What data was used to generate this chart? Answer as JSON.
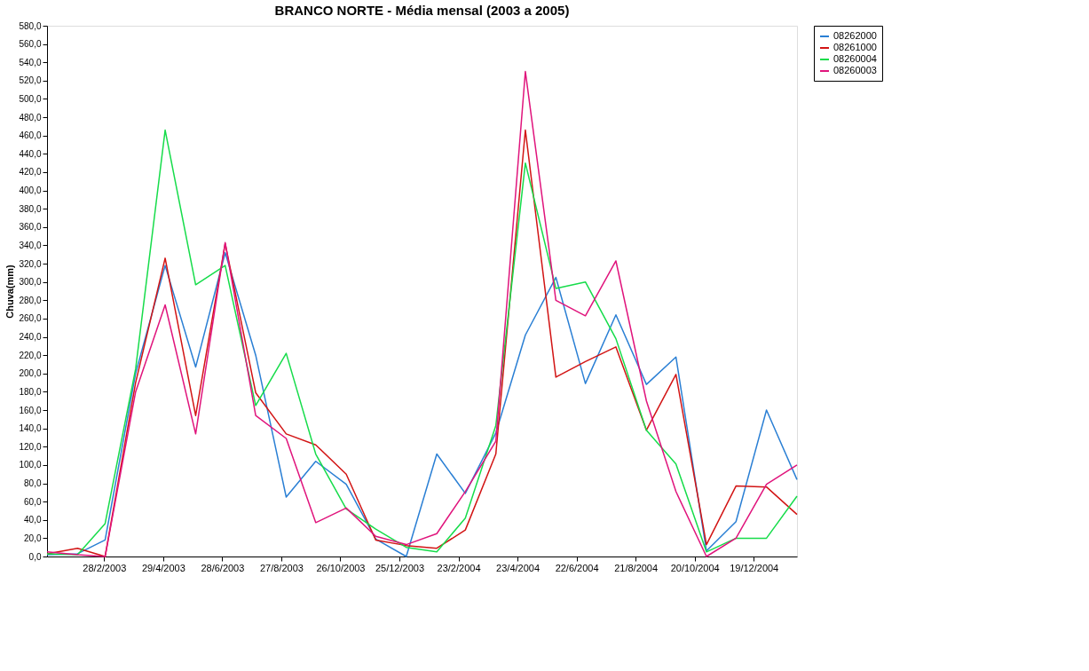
{
  "chart_data": {
    "type": "line",
    "title": "BRANCO NORTE - Média mensal (2003 a 2005)",
    "ylabel": "Chuva(mm)",
    "x": [
      "2003-01-01",
      "2003-02-01",
      "2003-03-01",
      "2003-04-01",
      "2003-05-01",
      "2003-06-01",
      "2003-07-01",
      "2003-08-01",
      "2003-09-01",
      "2003-10-01",
      "2003-11-01",
      "2003-12-01",
      "2004-01-01",
      "2004-02-01",
      "2004-03-01",
      "2004-04-01",
      "2004-05-01",
      "2004-06-01",
      "2004-07-01",
      "2004-08-01",
      "2004-09-01",
      "2004-10-01",
      "2004-11-01",
      "2004-12-01",
      "2005-01-01",
      "2005-02-01"
    ],
    "series": [
      {
        "name": "08262000",
        "color": "#2a7fd4",
        "values": [
          2,
          3,
          18,
          200,
          318,
          207,
          332,
          220,
          65,
          104,
          79,
          19,
          0,
          112,
          69,
          135,
          242,
          305,
          189,
          264,
          188,
          218,
          6,
          38,
          160,
          84
        ]
      },
      {
        "name": "08261000",
        "color": "#d21414",
        "values": [
          3,
          9,
          0,
          190,
          326,
          154,
          342,
          179,
          134,
          122,
          90,
          18,
          12,
          9,
          29,
          112,
          466,
          196,
          213,
          229,
          138,
          199,
          13,
          77,
          76,
          46
        ]
      },
      {
        "name": "08260004",
        "color": "#16dc4a",
        "values": [
          3,
          2,
          36,
          205,
          466,
          297,
          318,
          165,
          222,
          112,
          52,
          30,
          10,
          5,
          42,
          143,
          430,
          293,
          300,
          238,
          138,
          101,
          5,
          20,
          20,
          66
        ]
      },
      {
        "name": "08260003",
        "color": "#e0147c",
        "values": [
          5,
          2,
          0,
          180,
          275,
          134,
          343,
          154,
          129,
          37,
          53,
          22,
          13,
          25,
          71,
          126,
          530,
          280,
          263,
          323,
          170,
          71,
          0,
          20,
          79,
          100
        ]
      }
    ],
    "xlim": [
      "2003-01-01",
      "2005-02-01"
    ],
    "xticks": [
      {
        "value": "2003-02-28",
        "label": "28/2/2003"
      },
      {
        "value": "2003-04-29",
        "label": "29/4/2003"
      },
      {
        "value": "2003-06-28",
        "label": "28/6/2003"
      },
      {
        "value": "2003-08-27",
        "label": "27/8/2003"
      },
      {
        "value": "2003-10-26",
        "label": "26/10/2003"
      },
      {
        "value": "2003-12-25",
        "label": "25/12/2003"
      },
      {
        "value": "2004-02-23",
        "label": "23/2/2004"
      },
      {
        "value": "2004-04-23",
        "label": "23/4/2004"
      },
      {
        "value": "2004-06-22",
        "label": "22/6/2004"
      },
      {
        "value": "2004-08-21",
        "label": "21/8/2004"
      },
      {
        "value": "2004-10-20",
        "label": "20/10/2004"
      },
      {
        "value": "2004-12-19",
        "label": "19/12/2004"
      }
    ],
    "ylim": [
      0,
      580
    ],
    "yticks": [
      {
        "value": 0,
        "label": "0,0"
      },
      {
        "value": 20,
        "label": "20,0"
      },
      {
        "value": 40,
        "label": "40,0"
      },
      {
        "value": 60,
        "label": "60,0"
      },
      {
        "value": 80,
        "label": "80,0"
      },
      {
        "value": 100,
        "label": "100,0"
      },
      {
        "value": 120,
        "label": "120,0"
      },
      {
        "value": 140,
        "label": "140,0"
      },
      {
        "value": 160,
        "label": "160,0"
      },
      {
        "value": 180,
        "label": "180,0"
      },
      {
        "value": 200,
        "label": "200,0"
      },
      {
        "value": 220,
        "label": "220,0"
      },
      {
        "value": 240,
        "label": "240,0"
      },
      {
        "value": 260,
        "label": "260,0"
      },
      {
        "value": 280,
        "label": "280,0"
      },
      {
        "value": 300,
        "label": "300,0"
      },
      {
        "value": 320,
        "label": "320,0"
      },
      {
        "value": 340,
        "label": "340,0"
      },
      {
        "value": 360,
        "label": "360,0"
      },
      {
        "value": 380,
        "label": "380,0"
      },
      {
        "value": 400,
        "label": "400,0"
      },
      {
        "value": 420,
        "label": "420,0"
      },
      {
        "value": 440,
        "label": "440,0"
      },
      {
        "value": 460,
        "label": "460,0"
      },
      {
        "value": 480,
        "label": "480,0"
      },
      {
        "value": 500,
        "label": "500,0"
      },
      {
        "value": 520,
        "label": "520,0"
      },
      {
        "value": 540,
        "label": "540,0"
      },
      {
        "value": 560,
        "label": "560,0"
      },
      {
        "value": 580,
        "label": "580,0"
      }
    ],
    "grid": false,
    "legend": "top right",
    "marker": "none",
    "line_style": "solid"
  }
}
